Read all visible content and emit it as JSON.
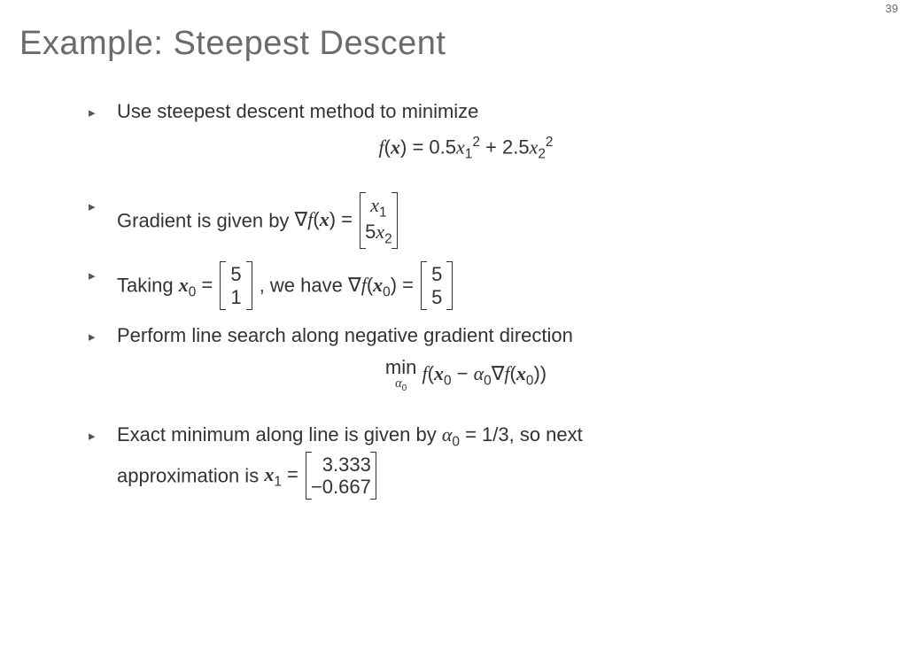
{
  "page_number": "39",
  "title": "Example: Steepest Descent",
  "bullet_glyph": "▸",
  "colors": {
    "text": "#3a3a3a",
    "title": "#6b6b6b",
    "bullet": "#555555",
    "background": "#ffffff"
  },
  "fonts": {
    "title_size_pt": 28,
    "body_size_pt": 16
  },
  "item1": {
    "text": "Use steepest descent method to minimize",
    "eq_prefix": "f",
    "eq_arg": "x",
    "eq_rhs_a": "0.5",
    "eq_rhs_b": "2.5"
  },
  "item2": {
    "text_before": "Gradient is given by ",
    "grad_sym": "∇",
    "f": "f",
    "x": "x",
    "mat_r1": "x",
    "mat_r1_sub": "1",
    "mat_r2_coef": "5",
    "mat_r2": "x",
    "mat_r2_sub": "2"
  },
  "item3": {
    "before": "Taking ",
    "x0": "x",
    "x0_sub": "0",
    "eq": " = ",
    "m1_r1": "5",
    "m1_r2": "1",
    "mid": ", we have ",
    "grad": "∇",
    "f": "f",
    "m2_r1": "5",
    "m2_r2": "5"
  },
  "item4": {
    "text": "Perform line search along negative gradient direction",
    "min": "min",
    "under": "α",
    "under_sub": "0",
    "f": "f",
    "x0": "x",
    "x0_sub": "0",
    "minus": " − ",
    "alpha": "α",
    "alpha_sub": "0",
    "grad": "∇"
  },
  "item5": {
    "l1a": "Exact minimum along line is given by ",
    "alpha": "α",
    "alpha_sub": "0",
    "eq": " = 1/3",
    "l1b": ", so next",
    "l2": "approximation is ",
    "x1": "x",
    "x1_sub": "1",
    "m_r1": " 3.333",
    "m_r2": "−0.667"
  }
}
